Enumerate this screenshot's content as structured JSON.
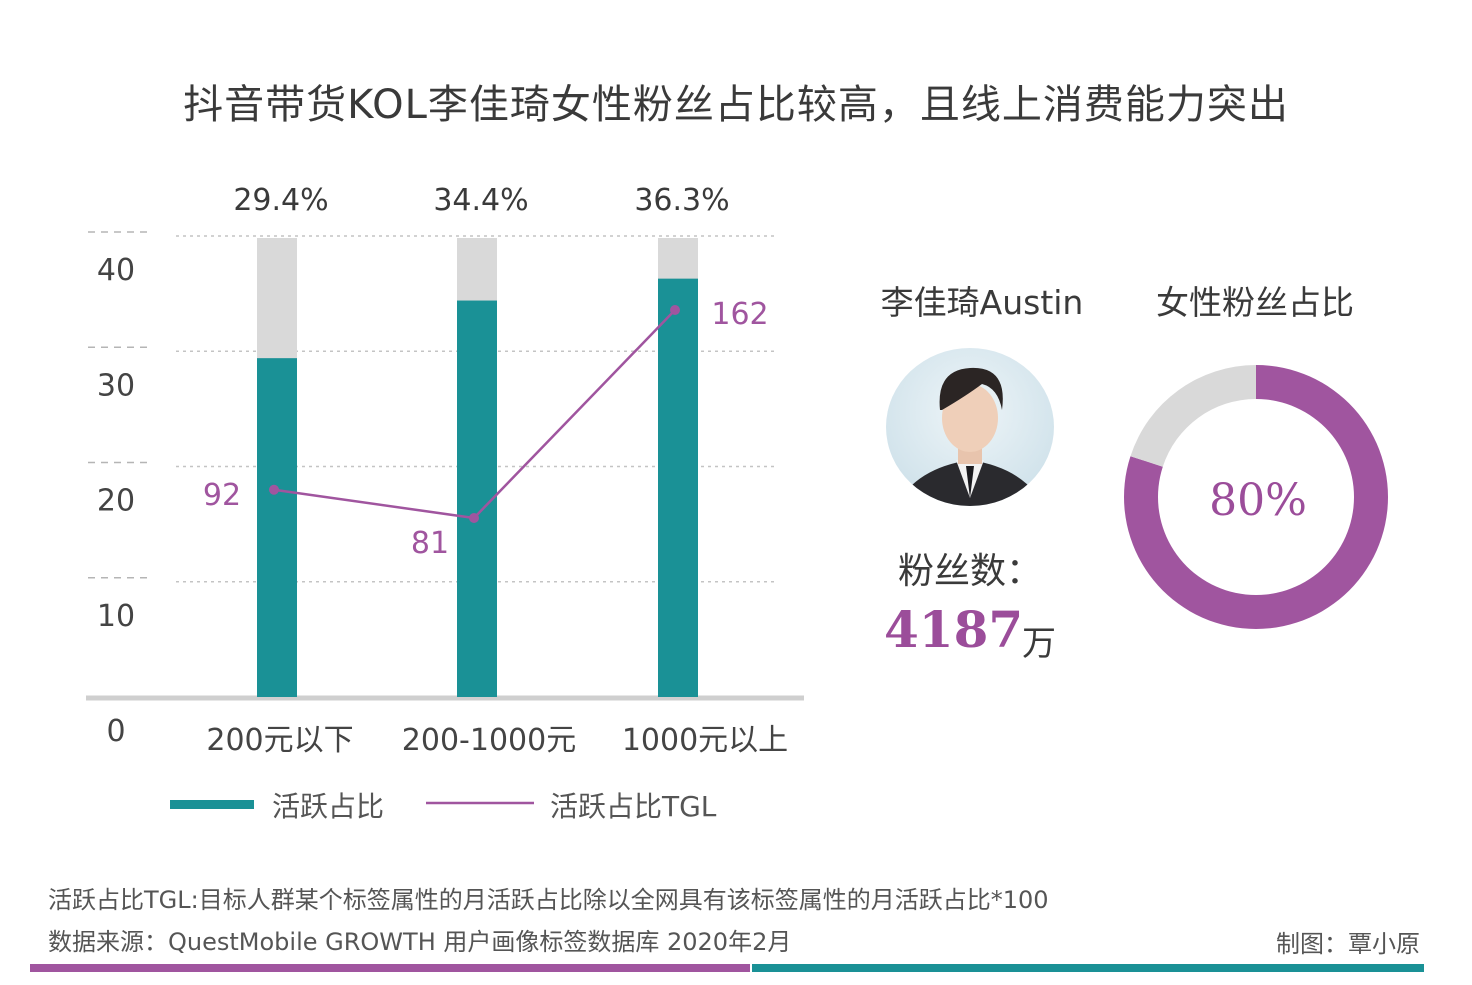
{
  "title": "抖音带货KOL李佳琦女性粉丝占比较高，且线上消费能力突出",
  "colors": {
    "bar": "#1a9196",
    "bar_background": "#d9d9d9",
    "line": "#a0559f",
    "donut_female": "#a0559f",
    "donut_rest": "#d9d9d9",
    "axis_text": "#444444"
  },
  "chart_data": [
    {
      "type": "bar",
      "categories": [
        "200元以下",
        "200-1000元",
        "1000元以上"
      ],
      "ylim": [
        0,
        40
      ],
      "yticks": [
        0,
        10,
        20,
        30,
        40
      ],
      "grid": true,
      "series": [
        {
          "name": "活跃占比",
          "type": "bar",
          "values": [
            29.4,
            34.4,
            36.3
          ],
          "value_labels": [
            "29.4%",
            "34.4%",
            "36.3%"
          ]
        },
        {
          "name": "活跃占比TGL",
          "type": "line",
          "values": [
            92,
            81,
            162
          ],
          "value_labels": [
            "92",
            "81",
            "162"
          ]
        }
      ],
      "legend": [
        "活跃占比",
        "活跃占比TGL"
      ],
      "legend_position": "bottom"
    },
    {
      "type": "pie",
      "title": "女性粉丝占比",
      "values": [
        80,
        20
      ],
      "center_label": "80%"
    }
  ],
  "profile": {
    "name": "李佳琦Austin",
    "fans_label": "粉丝数：",
    "fans_value": "4187",
    "fans_unit": "万"
  },
  "footnote": "活跃占比TGL:目标人群某个标签属性的月活跃占比除以全网具有该标签属性的月活跃占比*100",
  "source": "数据来源：QuestMobile GROWTH 用户画像标签数据库 2020年2月",
  "credit": "制图：覃小原"
}
